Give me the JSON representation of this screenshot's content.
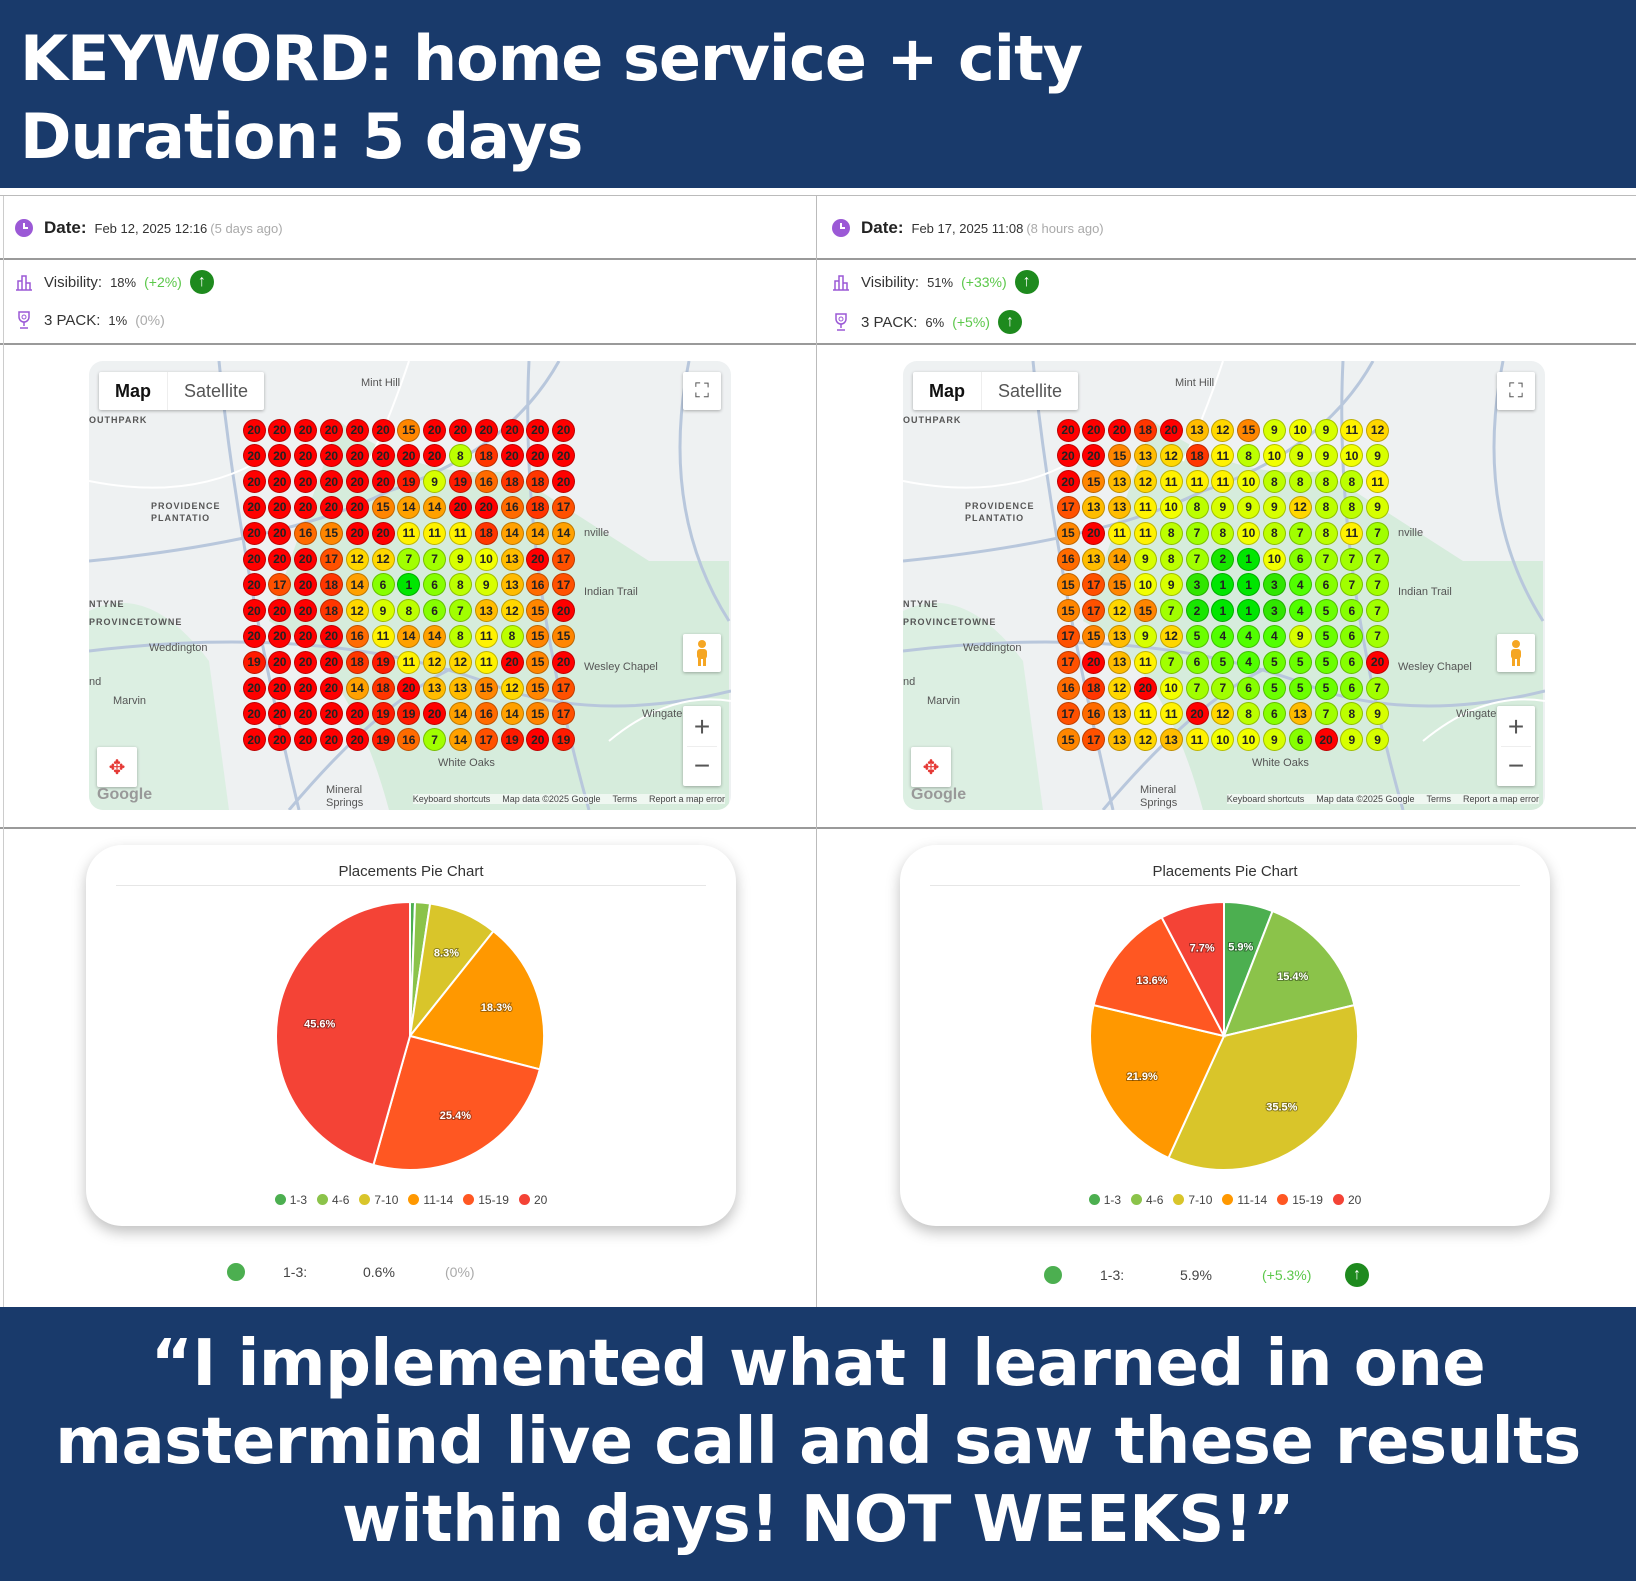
{
  "header": {
    "line1": "KEYWORD: home service + city",
    "line2": "Duration: 5 days"
  },
  "quote": {
    "line1": "“I implemented what I learned in one",
    "line2": "mastermind live call and saw these results",
    "line3": "within days! NOT WEEKS!”"
  },
  "map_labels": [
    "Mint Hill",
    "OUTHPARK",
    "PROVIDENCE",
    "PLANTATIO",
    "Weddington",
    "Marvin",
    "Wingate",
    "White Oaks",
    "Mineral",
    "Springs",
    "PROVINCETOWNE",
    "NTYNE",
    "Indian Trail",
    "Wesley Chapel",
    "nville",
    "nd"
  ],
  "map_controls": {
    "map": "Map",
    "satellite": "Satellite",
    "google": "Google",
    "keyboard": "Keyboard shortcuts",
    "mapdata": "Map data ©2025 Google",
    "terms": "Terms",
    "report": "Report a map error"
  },
  "legend": [
    "1-3",
    "4-6",
    "7-10",
    "11-14",
    "15-19",
    "20"
  ],
  "legend_colors": [
    "#4caf50",
    "#8bc34a",
    "#d9c52a",
    "#ff9800",
    "#ff5722",
    "#f44336"
  ],
  "accent": "#193a6b",
  "panels": [
    {
      "date_label": "Date:",
      "date": "Feb 12, 2025 12:16",
      "ago": "(5 days ago)",
      "visibility_label": "Visibility:",
      "visibility": "18%",
      "visibility_change": "(+2%)",
      "visibility_up": true,
      "pack_label": "3 PACK:",
      "pack": "1%",
      "pack_change": "(0%)",
      "pack_up": false,
      "grid": [
        [
          20,
          20,
          20,
          20,
          20,
          20,
          15,
          20,
          20,
          20,
          20,
          20,
          20
        ],
        [
          20,
          20,
          20,
          20,
          20,
          20,
          20,
          20,
          8,
          18,
          20,
          20,
          20
        ],
        [
          20,
          20,
          20,
          20,
          20,
          20,
          19,
          9,
          19,
          16,
          18,
          18,
          20
        ],
        [
          20,
          20,
          20,
          20,
          20,
          15,
          14,
          14,
          20,
          20,
          16,
          18,
          17
        ],
        [
          20,
          20,
          16,
          15,
          20,
          20,
          11,
          11,
          11,
          18,
          14,
          14,
          14
        ],
        [
          20,
          20,
          20,
          17,
          12,
          12,
          7,
          7,
          9,
          10,
          13,
          20,
          17
        ],
        [
          20,
          17,
          20,
          18,
          14,
          6,
          1,
          6,
          8,
          9,
          13,
          16,
          17
        ],
        [
          20,
          20,
          20,
          18,
          12,
          9,
          8,
          6,
          7,
          13,
          12,
          15,
          20
        ],
        [
          20,
          20,
          20,
          20,
          16,
          11,
          14,
          14,
          8,
          11,
          8,
          15,
          15
        ],
        [
          19,
          20,
          20,
          20,
          18,
          19,
          11,
          12,
          12,
          11,
          20,
          15,
          20
        ],
        [
          20,
          20,
          20,
          20,
          14,
          18,
          20,
          13,
          13,
          15,
          12,
          15,
          17
        ],
        [
          20,
          20,
          20,
          20,
          20,
          19,
          19,
          20,
          14,
          16,
          14,
          15,
          17
        ],
        [
          20,
          20,
          20,
          20,
          20,
          19,
          16,
          7,
          14,
          17,
          19,
          20,
          19
        ]
      ],
      "pie": {
        "title": "Placements Pie Chart",
        "values": [
          0.6,
          1.8,
          8.3,
          18.3,
          25.4,
          45.6
        ],
        "labels": [
          "",
          "",
          "8.3%",
          "18.3%",
          "25.4%",
          "45.6%"
        ]
      },
      "stat": {
        "label": "1-3:",
        "value": "0.6%",
        "change": "(0%)",
        "up": false
      }
    },
    {
      "date_label": "Date:",
      "date": "Feb 17, 2025 11:08",
      "ago": "(8 hours ago)",
      "visibility_label": "Visibility:",
      "visibility": "51%",
      "visibility_change": "(+33%)",
      "visibility_up": true,
      "pack_label": "3 PACK:",
      "pack": "6%",
      "pack_change": "(+5%)",
      "pack_up": true,
      "grid": [
        [
          20,
          20,
          20,
          18,
          20,
          13,
          12,
          15,
          9,
          10,
          9,
          11,
          12
        ],
        [
          20,
          20,
          15,
          13,
          12,
          18,
          11,
          8,
          10,
          9,
          9,
          10,
          9
        ],
        [
          20,
          15,
          13,
          12,
          11,
          11,
          11,
          10,
          8,
          8,
          8,
          8,
          11
        ],
        [
          17,
          13,
          13,
          11,
          10,
          8,
          9,
          9,
          9,
          12,
          8,
          8,
          9
        ],
        [
          15,
          20,
          11,
          11,
          8,
          7,
          8,
          10,
          8,
          7,
          8,
          11,
          7
        ],
        [
          16,
          13,
          14,
          9,
          8,
          7,
          2,
          1,
          10,
          6,
          7,
          7,
          7
        ],
        [
          15,
          17,
          15,
          10,
          9,
          3,
          1,
          1,
          3,
          4,
          6,
          7,
          7
        ],
        [
          15,
          17,
          12,
          15,
          7,
          2,
          1,
          1,
          3,
          4,
          5,
          6,
          7
        ],
        [
          17,
          15,
          13,
          9,
          12,
          5,
          4,
          4,
          4,
          9,
          5,
          6,
          7
        ],
        [
          17,
          20,
          13,
          11,
          7,
          6,
          5,
          4,
          5,
          5,
          5,
          6,
          20
        ],
        [
          16,
          18,
          12,
          20,
          10,
          7,
          7,
          6,
          5,
          5,
          5,
          6,
          7
        ],
        [
          17,
          16,
          13,
          11,
          11,
          20,
          12,
          8,
          6,
          13,
          7,
          8,
          9
        ],
        [
          15,
          17,
          13,
          12,
          13,
          11,
          10,
          10,
          9,
          6,
          20,
          9,
          9
        ]
      ],
      "pie": {
        "title": "Placements Pie Chart",
        "values": [
          5.9,
          15.4,
          35.5,
          21.9,
          13.6,
          7.7
        ],
        "labels": [
          "5.9%",
          "15.4%",
          "35.5%",
          "21.9%",
          "13.6%",
          "7.7%"
        ]
      },
      "stat": {
        "label": "1-3:",
        "value": "5.9%",
        "change": "(+5.3%)",
        "up": true
      }
    }
  ]
}
